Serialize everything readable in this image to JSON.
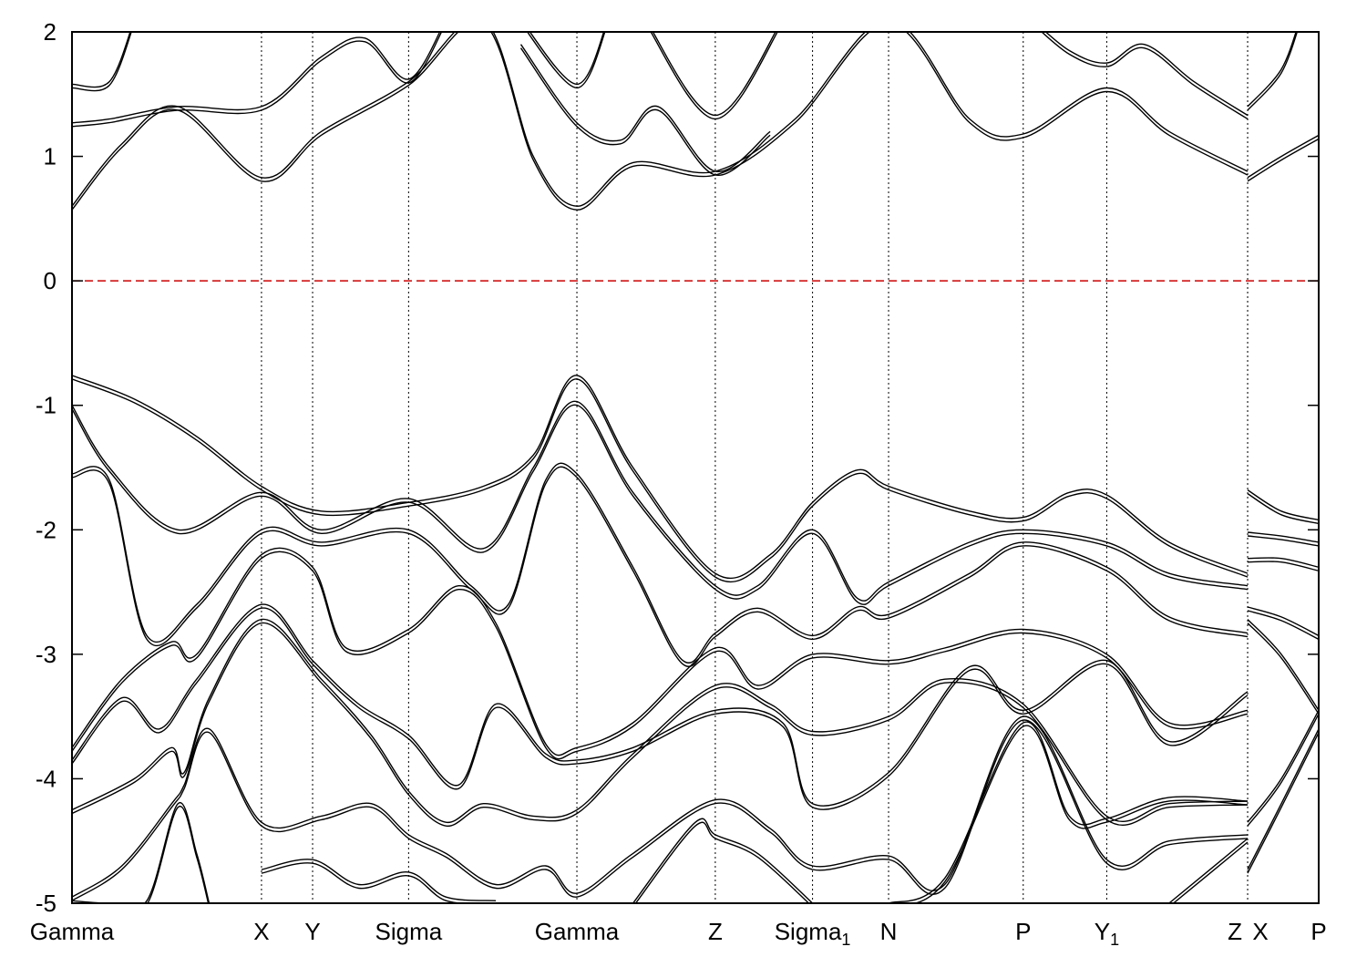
{
  "chart_data": {
    "type": "line",
    "title": "",
    "xlabel": "",
    "ylabel": "",
    "ylim": [
      -5,
      2
    ],
    "yticks": [
      2,
      1,
      0,
      -1,
      -2,
      -3,
      -4,
      -5
    ],
    "fermi_level": 0,
    "fermi_color": "#cc0000",
    "line_color": "#000000",
    "kpoints": [
      {
        "pos": 0.0,
        "label": "Gamma",
        "sub": ""
      },
      {
        "pos": 0.152,
        "label": "X",
        "sub": ""
      },
      {
        "pos": 0.193,
        "label": "Y",
        "sub": ""
      },
      {
        "pos": 0.27,
        "label": "Sigma",
        "sub": ""
      },
      {
        "pos": 0.405,
        "label": "Gamma",
        "sub": ""
      },
      {
        "pos": 0.516,
        "label": "Z",
        "sub": ""
      },
      {
        "pos": 0.594,
        "label": "Sigma",
        "sub": "1"
      },
      {
        "pos": 0.655,
        "label": "N",
        "sub": ""
      },
      {
        "pos": 0.763,
        "label": "P",
        "sub": ""
      },
      {
        "pos": 0.83,
        "label": "Y",
        "sub": "1"
      },
      {
        "pos": 0.943,
        "label": "Z",
        "sub": ""
      },
      {
        "pos": 0.943,
        "label": "X",
        "sub": ""
      },
      {
        "pos": 1.0,
        "label": "P",
        "sub": ""
      }
    ],
    "series": [
      {
        "x": [
          0,
          0.04,
          0.085,
          0.152,
          0.2,
          0.27,
          0.33,
          0.37,
          0.405,
          0.45,
          0.516,
          0.58,
          0.655,
          0.72,
          0.763,
          0.83,
          0.88,
          0.943
        ],
        "y": [
          0.6,
          1.1,
          1.4,
          0.83,
          1.2,
          1.6,
          2.1,
          1.0,
          0.6,
          0.95,
          0.88,
          1.3,
          2.1,
          1.3,
          1.18,
          1.55,
          1.2,
          0.88
        ]
      },
      {
        "x": [
          0,
          0.03,
          0.085,
          0.152,
          0.2,
          0.235,
          0.27,
          0.3
        ],
        "y": [
          1.27,
          1.3,
          1.4,
          1.4,
          1.8,
          1.95,
          1.62,
          2.1
        ]
      },
      {
        "x": [
          0,
          0.03,
          0.05
        ],
        "y": [
          1.58,
          1.6,
          2.1
        ]
      },
      {
        "x": [
          0.36,
          0.405,
          0.44,
          0.47,
          0.516,
          0.56
        ],
        "y": [
          1.9,
          1.27,
          1.13,
          1.4,
          0.88,
          1.2
        ]
      },
      {
        "x": [
          0.36,
          0.405,
          0.43
        ],
        "y": [
          2.1,
          1.58,
          2.1
        ]
      },
      {
        "x": [
          0.46,
          0.516,
          0.57
        ],
        "y": [
          2.1,
          1.33,
          2.1
        ]
      },
      {
        "x": [
          0.77,
          0.8,
          0.83,
          0.86,
          0.9,
          0.943
        ],
        "y": [
          2.1,
          1.85,
          1.75,
          1.9,
          1.6,
          1.33
        ]
      },
      {
        "x": [
          0.943,
          0.97,
          1.0
        ],
        "y": [
          0.83,
          1.0,
          1.17
        ]
      },
      {
        "x": [
          0.943,
          0.97,
          0.985
        ],
        "y": [
          1.4,
          1.7,
          2.1
        ]
      },
      {
        "x": [
          0,
          0.05,
          0.1,
          0.152,
          0.2,
          0.27,
          0.33,
          0.37,
          0.405,
          0.45,
          0.516,
          0.56,
          0.594,
          0.63,
          0.655,
          0.72,
          0.763,
          0.8,
          0.83,
          0.88,
          0.943
        ],
        "y": [
          -0.76,
          -0.95,
          -1.25,
          -1.65,
          -1.85,
          -1.78,
          -1.65,
          -1.4,
          -0.76,
          -1.5,
          -2.35,
          -2.2,
          -1.78,
          -1.52,
          -1.65,
          -1.85,
          -1.9,
          -1.7,
          -1.72,
          -2.1,
          -2.35
        ]
      },
      {
        "x": [
          0,
          0.03,
          0.085,
          0.152,
          0.2,
          0.27,
          0.33,
          0.37,
          0.405,
          0.45,
          0.516,
          0.55,
          0.594,
          0.63,
          0.655,
          0.72,
          0.763,
          0.83,
          0.88,
          0.943
        ],
        "y": [
          -1.0,
          -1.5,
          -2.0,
          -1.7,
          -2.0,
          -1.75,
          -2.15,
          -1.5,
          -0.97,
          -1.7,
          -2.45,
          -2.45,
          -2.0,
          -2.55,
          -2.42,
          -2.1,
          -2.0,
          -2.1,
          -2.35,
          -2.45
        ]
      },
      {
        "x": [
          0,
          0.03,
          0.06,
          0.1,
          0.152,
          0.2,
          0.27,
          0.32,
          0.35,
          0.38,
          0.405,
          0.45,
          0.49,
          0.516,
          0.55,
          0.594,
          0.63,
          0.655,
          0.72,
          0.763,
          0.83,
          0.88,
          0.943
        ],
        "y": [
          -1.55,
          -1.6,
          -2.85,
          -2.6,
          -2.0,
          -2.1,
          -2.0,
          -2.45,
          -2.6,
          -1.6,
          -1.55,
          -2.3,
          -3.05,
          -2.83,
          -2.63,
          -2.85,
          -2.62,
          -2.68,
          -2.35,
          -2.1,
          -2.3,
          -2.7,
          -2.83
        ]
      },
      {
        "x": [
          0,
          0.04,
          0.08,
          0.1,
          0.152,
          0.193,
          0.22,
          0.27,
          0.31,
          0.34,
          0.38,
          0.405,
          0.45,
          0.516,
          0.55,
          0.594,
          0.655,
          0.7,
          0.763,
          0.83,
          0.88,
          0.943
        ],
        "y": [
          -3.75,
          -3.2,
          -2.9,
          -3.0,
          -2.2,
          -2.3,
          -2.95,
          -2.8,
          -2.45,
          -2.75,
          -3.72,
          -3.75,
          -3.55,
          -2.95,
          -3.25,
          -3.0,
          -3.05,
          -2.95,
          -2.8,
          -3.0,
          -3.55,
          -3.45
        ]
      },
      {
        "x": [
          0,
          0.04,
          0.07,
          0.1,
          0.152,
          0.193,
          0.23,
          0.27,
          0.31,
          0.34,
          0.38,
          0.405,
          0.45,
          0.516,
          0.57,
          0.594,
          0.655,
          0.72,
          0.763,
          0.83,
          0.88,
          0.943
        ],
        "y": [
          -3.85,
          -3.35,
          -3.6,
          -3.2,
          -2.6,
          -3.05,
          -3.4,
          -3.65,
          -4.05,
          -3.4,
          -3.8,
          -3.85,
          -3.75,
          -3.45,
          -3.55,
          -4.2,
          -3.95,
          -3.1,
          -3.45,
          -3.05,
          -3.7,
          -3.3
        ]
      },
      {
        "x": [
          0,
          0.05,
          0.08,
          0.09,
          0.11,
          0.152,
          0.2,
          0.24,
          0.27,
          0.3,
          0.33,
          0.37,
          0.405,
          0.45,
          0.516,
          0.56,
          0.594,
          0.655,
          0.7,
          0.763,
          0.83,
          0.88,
          0.943
        ],
        "y": [
          -4.25,
          -4.0,
          -3.75,
          -3.95,
          -3.35,
          -2.72,
          -3.2,
          -3.65,
          -4.1,
          -4.35,
          -4.2,
          -4.3,
          -4.25,
          -3.8,
          -3.25,
          -3.4,
          -3.62,
          -3.5,
          -3.2,
          -3.4,
          -4.3,
          -4.2,
          -4.18
        ]
      },
      {
        "x": [
          0,
          0.04,
          0.08,
          0.09,
          0.11,
          0.152,
          0.2,
          0.24,
          0.27,
          0.3,
          0.34,
          0.38,
          0.405,
          0.45,
          0.516,
          0.56,
          0.594,
          0.655,
          0.7,
          0.763,
          0.83,
          0.88,
          0.943
        ],
        "y": [
          -4.95,
          -4.7,
          -4.2,
          -4.05,
          -3.6,
          -4.35,
          -4.3,
          -4.2,
          -4.45,
          -4.6,
          -4.85,
          -4.7,
          -4.92,
          -4.6,
          -4.17,
          -4.4,
          -4.7,
          -4.62,
          -4.85,
          -3.5,
          -4.65,
          -4.5,
          -4.45
        ]
      },
      {
        "x": [
          0,
          0.03,
          0.06,
          0.085,
          0.1,
          0.11
        ],
        "y": [
          -4.98,
          -5.0,
          -4.98,
          -4.2,
          -4.6,
          -5.0
        ]
      },
      {
        "x": [
          0.152,
          0.193,
          0.23,
          0.27,
          0.3,
          0.34
        ],
        "y": [
          -4.73,
          -4.65,
          -4.85,
          -4.75,
          -4.95,
          -4.98
        ]
      },
      {
        "x": [
          0.45,
          0.5,
          0.516,
          0.55,
          0.594
        ],
        "y": [
          -5.0,
          -4.35,
          -4.45,
          -4.6,
          -5.0
        ]
      },
      {
        "x": [
          0.655,
          0.7,
          0.763,
          0.8,
          0.83,
          0.88,
          0.943
        ],
        "y": [
          -5.0,
          -4.8,
          -3.55,
          -4.3,
          -4.32,
          -4.15,
          -4.18
        ]
      },
      {
        "x": [
          0.88,
          0.943
        ],
        "y": [
          -5.0,
          -4.48
        ]
      },
      {
        "x": [
          0.943,
          0.97,
          1.0
        ],
        "y": [
          -1.68,
          -1.85,
          -1.92
        ]
      },
      {
        "x": [
          0.943,
          0.97,
          1.0
        ],
        "y": [
          -2.02,
          -2.05,
          -2.1
        ]
      },
      {
        "x": [
          0.943,
          0.97,
          1.0
        ],
        "y": [
          -2.23,
          -2.23,
          -2.3
        ]
      },
      {
        "x": [
          0.943,
          0.97,
          1.0
        ],
        "y": [
          -2.62,
          -2.7,
          -2.85
        ]
      },
      {
        "x": [
          0.943,
          0.97,
          1.0
        ],
        "y": [
          -2.72,
          -3.0,
          -3.45
        ]
      },
      {
        "x": [
          0.943,
          0.97,
          1.0
        ],
        "y": [
          -4.35,
          -4.0,
          -3.45
        ]
      },
      {
        "x": [
          0.943,
          0.97,
          1.0
        ],
        "y": [
          -4.73,
          -4.2,
          -3.6
        ]
      }
    ]
  }
}
